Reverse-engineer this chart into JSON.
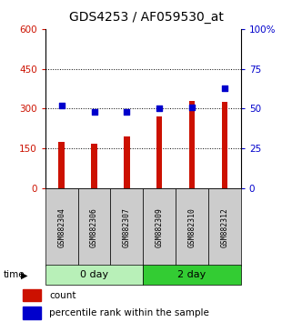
{
  "title": "GDS4253 / AF059530_at",
  "samples": [
    "GSM882304",
    "GSM882306",
    "GSM882307",
    "GSM882309",
    "GSM882310",
    "GSM882312"
  ],
  "counts": [
    175,
    168,
    195,
    270,
    330,
    325
  ],
  "percentile_ranks": [
    52,
    48,
    48,
    50,
    51,
    63
  ],
  "groups": [
    {
      "label": "0 day",
      "indices": [
        0,
        1,
        2
      ],
      "color": "#b8f0b8"
    },
    {
      "label": "2 day",
      "indices": [
        3,
        4,
        5
      ],
      "color": "#33cc33"
    }
  ],
  "bar_color": "#cc1100",
  "dot_color": "#0000cc",
  "left_ylim": [
    0,
    600
  ],
  "right_ylim": [
    0,
    100
  ],
  "left_yticks": [
    0,
    150,
    300,
    450,
    600
  ],
  "right_yticks": [
    0,
    25,
    50,
    75,
    100
  ],
  "right_yticklabels": [
    "0",
    "25",
    "50",
    "75",
    "100%"
  ],
  "hlines": [
    150,
    300,
    450
  ],
  "background_color": "#ffffff",
  "title_fontsize": 10,
  "tick_label_color_left": "#cc1100",
  "tick_label_color_right": "#0000cc",
  "sample_box_color": "#cccccc",
  "bar_width": 0.18
}
